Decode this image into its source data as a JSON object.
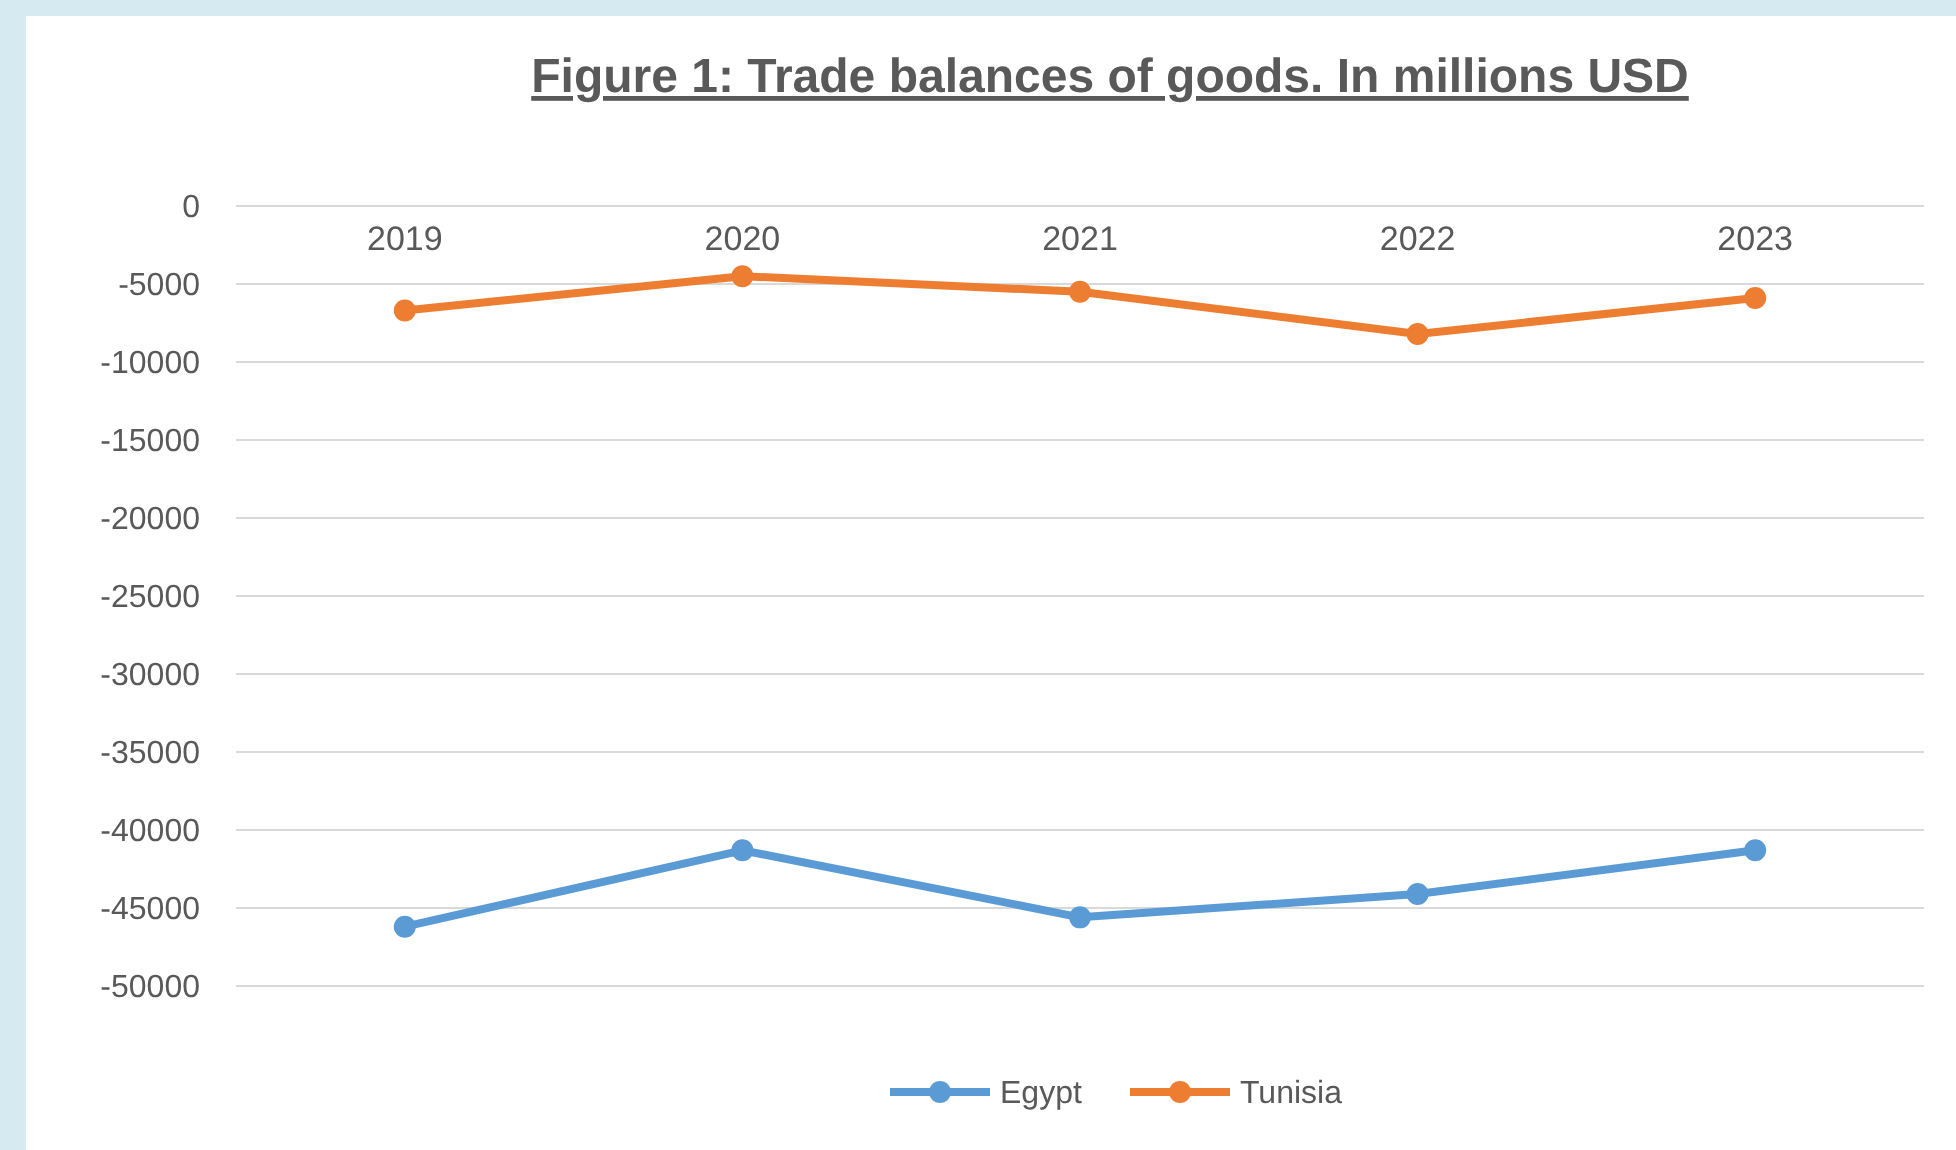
{
  "chart_data": {
    "type": "line",
    "title": "Figure 1:   Trade balances of goods.  In millions USD",
    "categories": [
      "2019",
      "2020",
      "2021",
      "2022",
      "2023"
    ],
    "series": [
      {
        "name": "Egypt",
        "color": "#5b9bd5",
        "values": [
          -46200,
          -41300,
          -45600,
          -44100,
          -41300
        ]
      },
      {
        "name": "Tunisia",
        "color": "#ed7d31",
        "values": [
          -6700,
          -4500,
          -5500,
          -8200,
          -5900
        ]
      }
    ],
    "ylim": [
      -50000,
      0
    ],
    "yticks": [
      0,
      -5000,
      -10000,
      -15000,
      -20000,
      -25000,
      -30000,
      -35000,
      -40000,
      -45000,
      -50000
    ],
    "grid": "y",
    "legend": "bottom",
    "marker": "circle",
    "line_style": "solid"
  }
}
